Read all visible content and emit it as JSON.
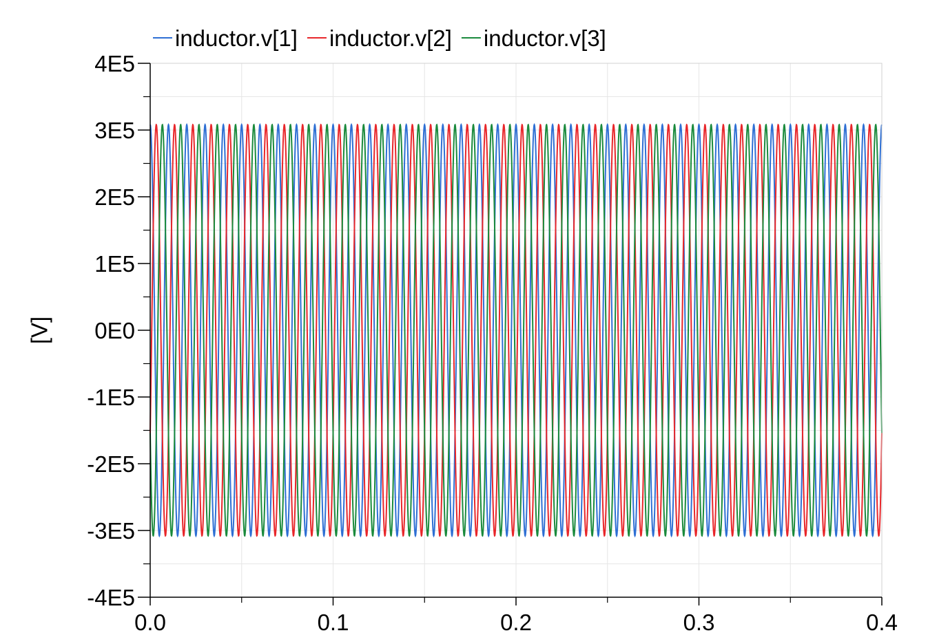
{
  "chart_data": {
    "type": "line",
    "title": "",
    "xlabel": "",
    "ylabel": "[V]",
    "xlim": [
      0.0,
      0.4
    ],
    "ylim": [
      -400000,
      400000
    ],
    "x_ticks": [
      0.0,
      0.1,
      0.2,
      0.3,
      0.4
    ],
    "x_tick_labels": [
      "0.0",
      "0.1",
      "0.2",
      "0.3",
      "0.4"
    ],
    "x_minor_ticks": [
      0.05,
      0.15,
      0.25,
      0.35
    ],
    "y_ticks": [
      400000,
      300000,
      200000,
      100000,
      0,
      -100000,
      -200000,
      -300000,
      -400000
    ],
    "y_tick_labels": [
      "4E5",
      "3E5",
      "2E5",
      "1E5",
      "0E0",
      "-1E5",
      "-2E5",
      "-3E5",
      "-4E5"
    ],
    "grid": true,
    "legend_position": "top",
    "series": [
      {
        "name": "inductor.v[1]",
        "color": "#2e6fd4",
        "function": "A*cos(2*pi*f*t + phase)",
        "amplitude": 308000,
        "frequency_hz": 100,
        "phase_deg": 0
      },
      {
        "name": "inductor.v[2]",
        "color": "#e8262a",
        "function": "A*cos(2*pi*f*t + phase)",
        "amplitude": 308000,
        "frequency_hz": 100,
        "phase_deg": -120
      },
      {
        "name": "inductor.v[3]",
        "color": "#1a8a3c",
        "function": "A*cos(2*pi*f*t + phase)",
        "amplitude": 308000,
        "frequency_hz": 100,
        "phase_deg": 120
      }
    ]
  }
}
